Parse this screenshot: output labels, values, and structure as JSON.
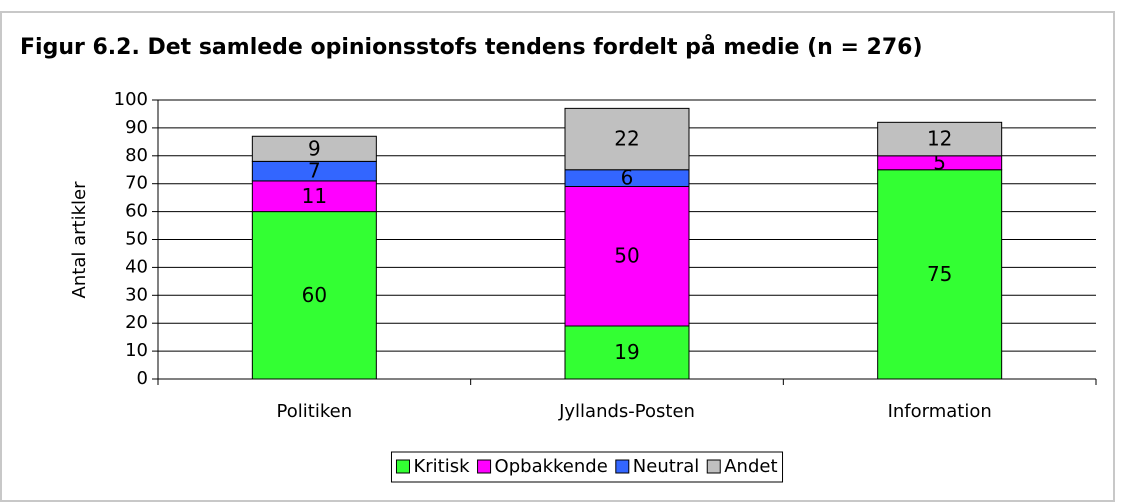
{
  "chart_data": {
    "type": "bar",
    "stacked": true,
    "title": "Figur 6.2. Det samlede opinionsstofs tendens fordelt på medie (n = 276)",
    "y_label": "Antal artikler",
    "categories": [
      "Politiken",
      "Jyllands-Posten",
      "Information"
    ],
    "series": [
      {
        "name": "Kritisk",
        "color": "#33ff33",
        "values": [
          60,
          19,
          75
        ]
      },
      {
        "name": "Opbakkende",
        "color": "#ff00ff",
        "values": [
          11,
          50,
          5
        ]
      },
      {
        "name": "Neutral",
        "color": "#3366ff",
        "values": [
          7,
          6,
          null
        ]
      },
      {
        "name": "Andet",
        "color": "#c0c0c0",
        "values": [
          9,
          22,
          12
        ]
      }
    ],
    "ylim": [
      0,
      100
    ],
    "yticks": [
      0,
      10,
      20,
      30,
      40,
      50,
      60,
      70,
      80,
      90,
      100
    ],
    "grid": true,
    "legend": "bottom"
  }
}
